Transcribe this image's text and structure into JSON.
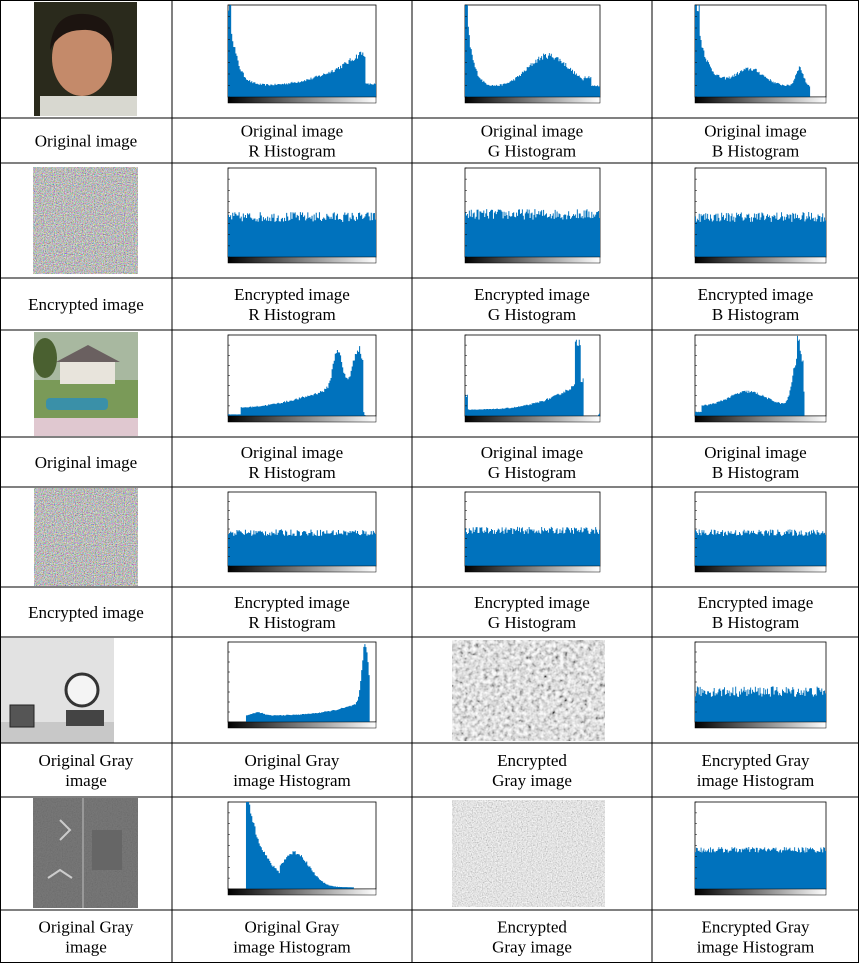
{
  "captions": [
    [
      [
        "Original image"
      ],
      [
        "Original image",
        "R Histogram"
      ],
      [
        "Original image",
        "G Histogram"
      ],
      [
        "Original image",
        "B Histogram"
      ]
    ],
    [
      [
        "Encrypted image"
      ],
      [
        "Encrypted image",
        "R Histogram"
      ],
      [
        "Encrypted image",
        "G Histogram"
      ],
      [
        "Encrypted image",
        "B Histogram"
      ]
    ],
    [
      [
        "Original image"
      ],
      [
        "Original image",
        "R Histogram"
      ],
      [
        "Original image",
        "G Histogram"
      ],
      [
        "Original image",
        "B Histogram"
      ]
    ],
    [
      [
        "Encrypted image"
      ],
      [
        "Encrypted image",
        "R Histogram"
      ],
      [
        "Encrypted image",
        "G Histogram"
      ],
      [
        "Encrypted image",
        "B Histogram"
      ]
    ],
    [
      [
        "Original Gray",
        "image"
      ],
      [
        "Original Gray",
        "image Histogram"
      ],
      [
        "Encrypted",
        "Gray image"
      ],
      [
        "Encrypted Gray",
        "image Histogram"
      ]
    ],
    [
      [
        "Original Gray",
        "image"
      ],
      [
        "Original Gray",
        "image Histogram"
      ],
      [
        "Encrypted",
        "Gray image"
      ],
      [
        "Encrypted Gray",
        "image Histogram"
      ]
    ]
  ]
}
